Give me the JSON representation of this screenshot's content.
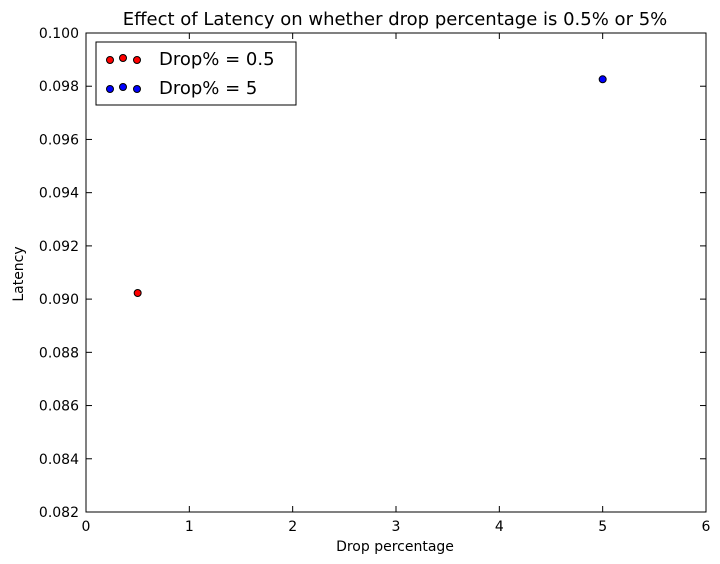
{
  "chart_data": {
    "type": "scatter",
    "title": "Effect of Latency on whether drop percentage is 0.5% or 5%",
    "xlabel": "Drop percentage",
    "ylabel": "Latency",
    "xlim": [
      0,
      6
    ],
    "ylim": [
      0.082,
      0.1
    ],
    "xticks": [
      "0",
      "1",
      "2",
      "3",
      "4",
      "5",
      "6"
    ],
    "yticks": [
      "0.082",
      "0.084",
      "0.086",
      "0.088",
      "0.090",
      "0.092",
      "0.094",
      "0.096",
      "0.098",
      "0.100"
    ],
    "grid": false,
    "legend_position": "top-left",
    "series": [
      {
        "name": "Drop% = 0.5",
        "color": "#ff0000",
        "points": [
          {
            "x": 0.5,
            "y": 0.09023
          }
        ]
      },
      {
        "name": "Drop% = 5",
        "color": "#0000ff",
        "points": [
          {
            "x": 5,
            "y": 0.09826
          }
        ]
      }
    ]
  }
}
